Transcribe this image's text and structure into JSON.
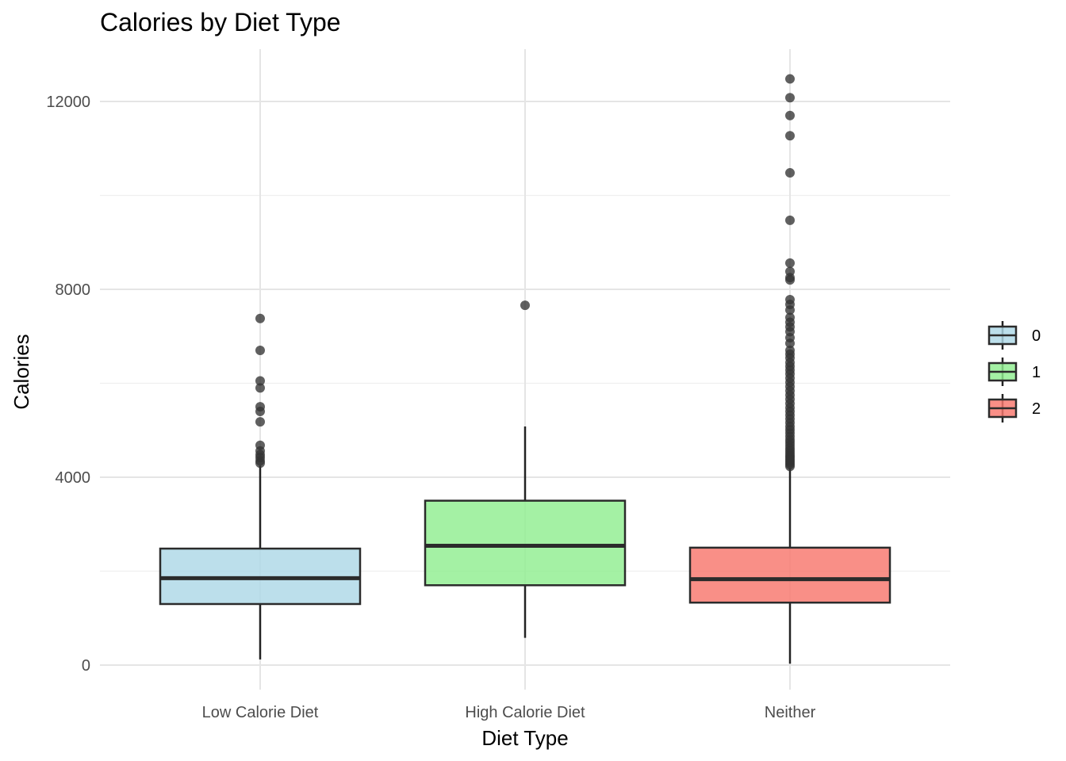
{
  "chart_data": {
    "type": "boxplot",
    "title": "Calories by Diet Type",
    "xlabel": "Diet Type",
    "ylabel": "Calories",
    "categories": [
      "Low Calorie Diet",
      "High Calorie Diet",
      "Neither"
    ],
    "y_ticks": [
      0,
      4000,
      8000,
      12000
    ],
    "ylim": [
      -500,
      13000
    ],
    "grid": true,
    "legend_position": "right",
    "legend": [
      {
        "label": "0",
        "color": "#ADD8E6"
      },
      {
        "label": "1",
        "color": "#90EE90"
      },
      {
        "label": "2",
        "color": "#F8766D"
      }
    ],
    "boxes": [
      {
        "category": "Low Calorie Diet",
        "group": "0",
        "whisker_low": 120,
        "q1": 1300,
        "median": 1850,
        "q3": 2480,
        "whisker_high": 4250,
        "outliers": [
          4300,
          4350,
          4420,
          4480,
          4560,
          4680,
          5180,
          5400,
          5500,
          5900,
          6050,
          6700,
          7380
        ]
      },
      {
        "category": "High Calorie Diet",
        "group": "1",
        "whisker_low": 580,
        "q1": 1700,
        "median": 2540,
        "q3": 3500,
        "whisker_high": 5080,
        "outliers": [
          7660
        ]
      },
      {
        "category": "Neither",
        "group": "2",
        "whisker_low": 30,
        "q1": 1330,
        "median": 1830,
        "q3": 2500,
        "whisker_high": 4200,
        "outliers": [
          4230,
          4270,
          4310,
          4350,
          4390,
          4430,
          4470,
          4520,
          4570,
          4620,
          4680,
          4740,
          4800,
          4870,
          4940,
          5010,
          5080,
          5160,
          5240,
          5320,
          5400,
          5480,
          5570,
          5660,
          5750,
          5840,
          5930,
          6020,
          6110,
          6200,
          6280,
          6360,
          6440,
          6540,
          6620,
          6700,
          6850,
          6970,
          7100,
          7200,
          7300,
          7400,
          7560,
          7680,
          7780,
          8200,
          8250,
          8380,
          8560,
          9470,
          10480,
          11270,
          11700,
          12080,
          12480
        ]
      }
    ]
  }
}
